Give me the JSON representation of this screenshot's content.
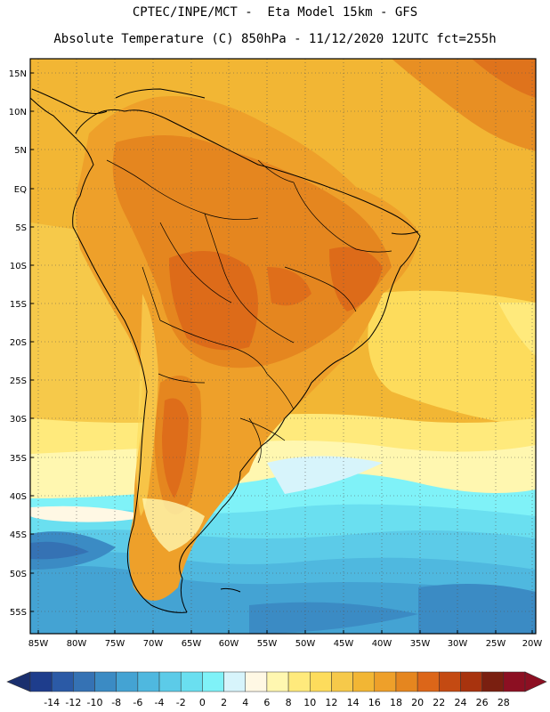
{
  "header": {
    "line1": "CPTEC/INPE/MCT -  Eta Model 15km - GFS",
    "line2": "Absolute Temperature (C) 850hPa - 11/12/2020 12UTC fct=255h"
  },
  "map": {
    "lat_labels": [
      "15N",
      "10N",
      "5N",
      "EQ",
      "5S",
      "10S",
      "15S",
      "20S",
      "25S",
      "30S",
      "35S",
      "40S",
      "45S",
      "50S",
      "55S"
    ],
    "lon_labels": [
      "85W",
      "80W",
      "75W",
      "70W",
      "65W",
      "60W",
      "55W",
      "50W",
      "45W",
      "40W",
      "35W",
      "30W",
      "25W",
      "20W"
    ],
    "gridlines": "dotted",
    "region": "South America"
  },
  "colorbar": {
    "levels": [
      "-14",
      "-12",
      "-10",
      "-8",
      "-6",
      "-4",
      "-2",
      "0",
      "2",
      "4",
      "6",
      "8",
      "10",
      "12",
      "14",
      "16",
      "18",
      "20",
      "22",
      "24",
      "26",
      "28"
    ],
    "colors": [
      "#1e3d8c",
      "#2b5aa6",
      "#3572b4",
      "#3b8bc4",
      "#44a3d3",
      "#4fb8df",
      "#5ccbe8",
      "#6adff0",
      "#7ff2f8",
      "#d7f4fb",
      "#fff8e4",
      "#fff7b0",
      "#ffea7c",
      "#fddc5c",
      "#f6c94a",
      "#f2b634",
      "#eea02a",
      "#e5861f",
      "#dc6619",
      "#c44a12",
      "#a8330e",
      "#7a1f10",
      "#8c0f22"
    ],
    "arrow_low": "#1a2f6e",
    "arrow_high": "#8c0f22"
  }
}
